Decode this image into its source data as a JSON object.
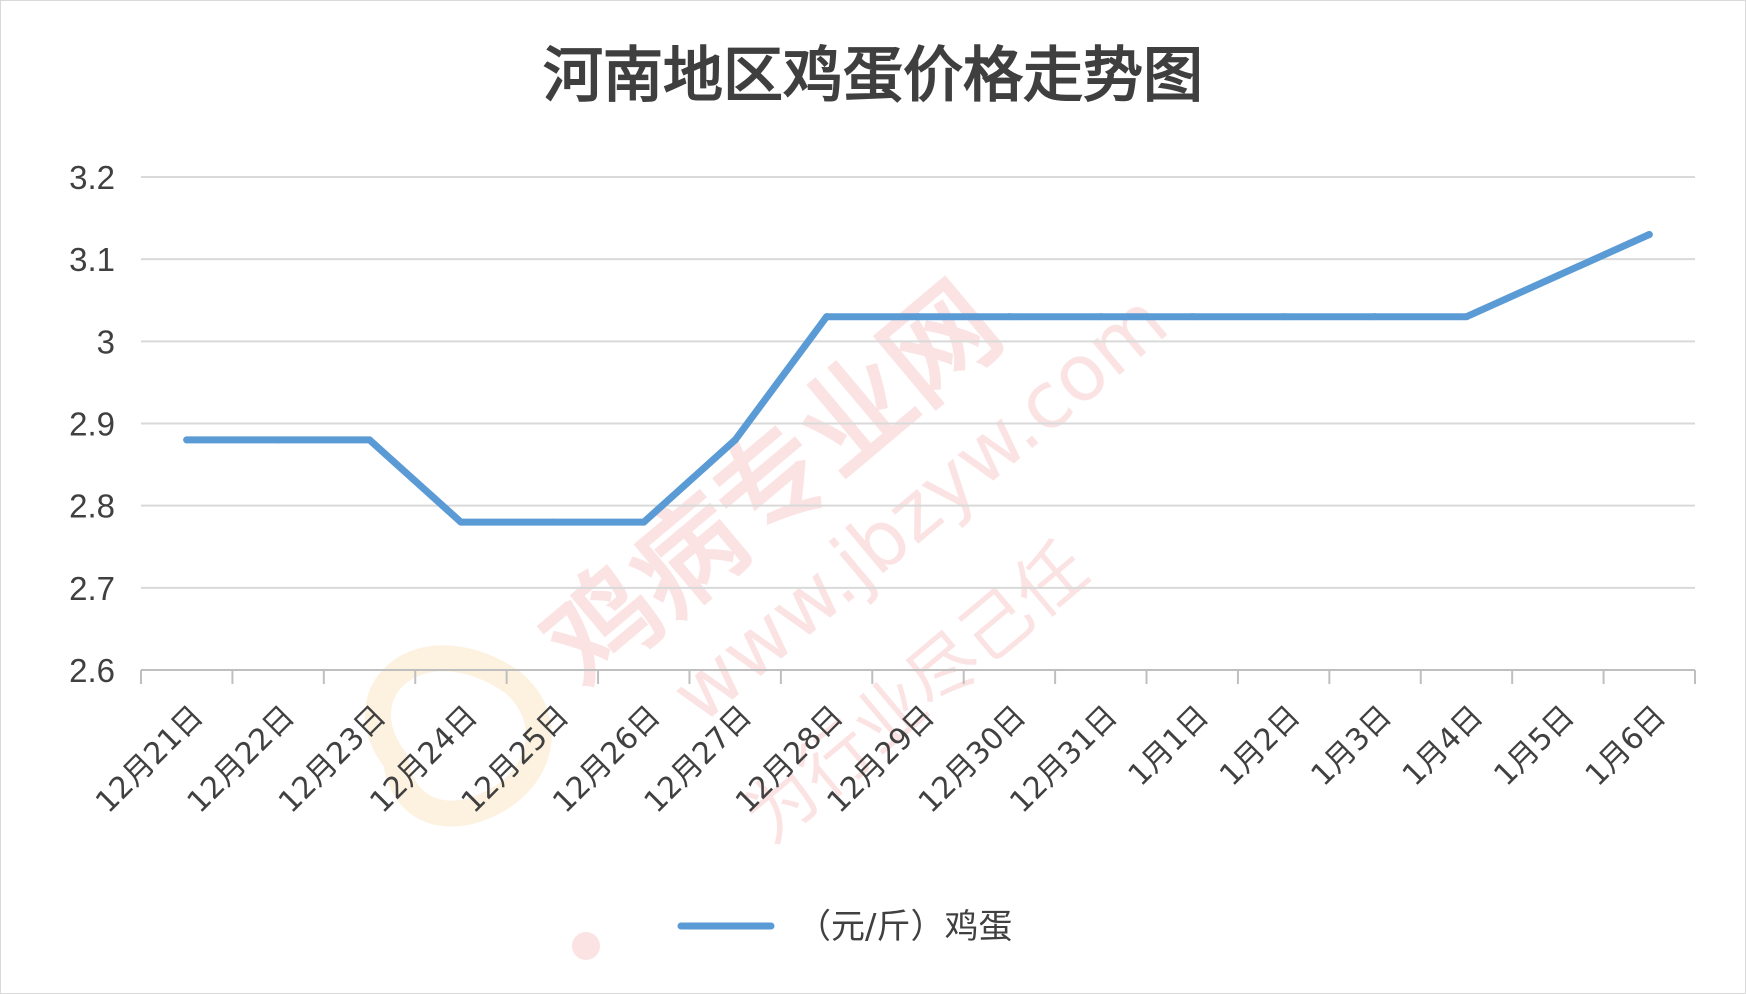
{
  "chart_data": {
    "type": "line",
    "title": "河南地区鸡蛋价格走势图",
    "categories": [
      "12月21日",
      "12月22日",
      "12月23日",
      "12月24日",
      "12月25日",
      "12月26日",
      "12月27日",
      "12月28日",
      "12月29日",
      "12月30日",
      "12月31日",
      "1月1日",
      "1月2日",
      "1月3日",
      "1月4日",
      "1月5日",
      "1月6日"
    ],
    "series": [
      {
        "name": "（元/斤）鸡蛋",
        "color": "#5b9bd5",
        "values": [
          2.88,
          2.88,
          2.88,
          2.78,
          2.78,
          2.78,
          2.88,
          3.03,
          3.03,
          3.03,
          3.03,
          3.03,
          3.03,
          3.03,
          3.03,
          3.08,
          3.13
        ]
      }
    ],
    "yticks": [
      "2.6",
      "2.7",
      "2.8",
      "2.9",
      "3",
      "3.1",
      "3.2"
    ],
    "ylim": [
      2.6,
      3.2
    ],
    "grid": true,
    "legend": "bottom"
  },
  "watermark": {
    "text": "鸡病专业网",
    "url": "www.jbzyw.com",
    "slogan": "为行业尽己任",
    "color": "#e74c4c"
  }
}
